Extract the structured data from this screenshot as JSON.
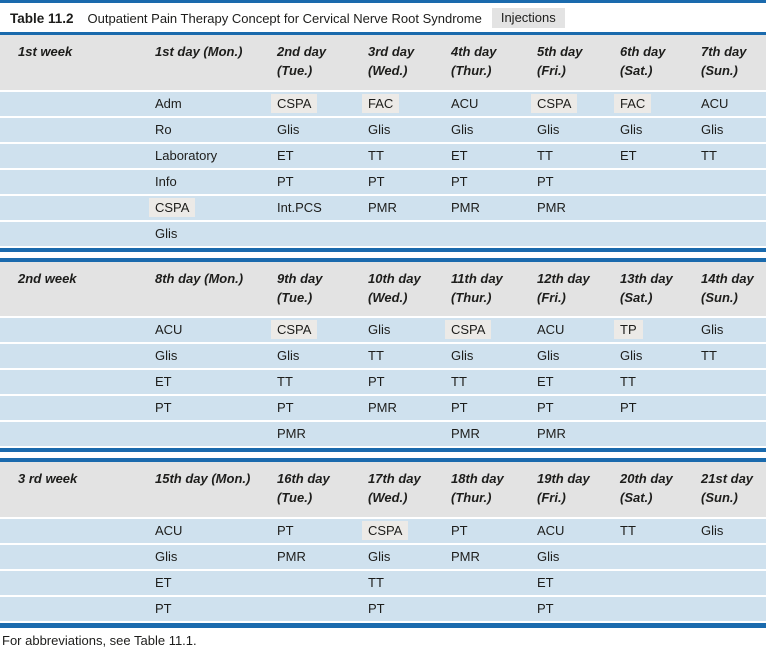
{
  "title": {
    "label": "Table 11.2",
    "text": "Outpatient Pain Therapy Concept for Cervical Nerve Root Syndrome",
    "tag": "Injections"
  },
  "footer": "For abbreviations, see Table 11.1.",
  "colors": {
    "rule_blue": "#1a6aad",
    "row_blue": "#cfe1ee",
    "header_gray": "#e3e3e3",
    "highlight_gray": "#eceae7"
  },
  "table": {
    "weeks": [
      {
        "week_label": "1st week",
        "day_headers": [
          "1st day (Mon.)",
          "2nd day\n(Tue.)",
          "3rd day\n(Wed.)",
          "4th day\n(Thur.)",
          "5th day\n(Fri.)",
          "6th day\n(Sat.)",
          "7th day\n(Sun.)"
        ],
        "rows": [
          [
            "Adm",
            {
              "text": "CSPA",
              "highlighted": true
            },
            {
              "text": "FAC",
              "highlighted": true
            },
            "ACU",
            {
              "text": "CSPA",
              "highlighted": true
            },
            {
              "text": "FAC",
              "highlighted": true
            },
            "ACU"
          ],
          [
            "Ro",
            "Glis",
            "Glis",
            "Glis",
            "Glis",
            "Glis",
            "Glis"
          ],
          [
            "Laboratory",
            "ET",
            "TT",
            "ET",
            "TT",
            "ET",
            "TT"
          ],
          [
            "Info",
            "PT",
            "PT",
            "PT",
            "PT",
            "",
            ""
          ],
          [
            {
              "text": "CSPA",
              "highlighted": true
            },
            "Int.PCS",
            "PMR",
            "PMR",
            "PMR",
            "",
            ""
          ],
          [
            "Glis",
            "",
            "",
            "",
            "",
            "",
            ""
          ]
        ]
      },
      {
        "week_label": "2nd week",
        "day_headers": [
          "8th day (Mon.)",
          "9th day\n(Tue.)",
          "10th day\n(Wed.)",
          "11th day\n(Thur.)",
          "12th day\n(Fri.)",
          "13th day\n(Sat.)",
          "14th day\n(Sun.)"
        ],
        "rows": [
          [
            "ACU",
            {
              "text": "CSPA",
              "highlighted": true
            },
            "Glis",
            {
              "text": "CSPA",
              "highlighted": true
            },
            "ACU",
            {
              "text": "TP",
              "highlighted": true
            },
            "Glis"
          ],
          [
            "Glis",
            "Glis",
            "TT",
            "Glis",
            "Glis",
            "Glis",
            "TT"
          ],
          [
            "ET",
            "TT",
            "PT",
            "TT",
            "ET",
            "TT",
            ""
          ],
          [
            "PT",
            "PT",
            "PMR",
            "PT",
            "PT",
            "PT",
            ""
          ],
          [
            "",
            "PMR",
            "",
            "PMR",
            "PMR",
            "",
            ""
          ]
        ]
      },
      {
        "week_label": "3 rd week",
        "day_headers": [
          "15th day (Mon.)",
          "16th day\n(Tue.)",
          "17th day\n(Wed.)",
          "18th day\n(Thur.)",
          "19th day\n(Fri.)",
          "20th day\n(Sat.)",
          "21st day\n(Sun.)"
        ],
        "rows": [
          [
            "ACU",
            "PT",
            {
              "text": "CSPA",
              "highlighted": true
            },
            "PT",
            "ACU",
            "TT",
            "Glis"
          ],
          [
            "Glis",
            "PMR",
            "Glis",
            "PMR",
            "Glis",
            "",
            ""
          ],
          [
            "ET",
            "",
            "TT",
            "",
            "ET",
            "",
            ""
          ],
          [
            "PT",
            "",
            "PT",
            "",
            "PT",
            "",
            ""
          ]
        ]
      }
    ]
  }
}
